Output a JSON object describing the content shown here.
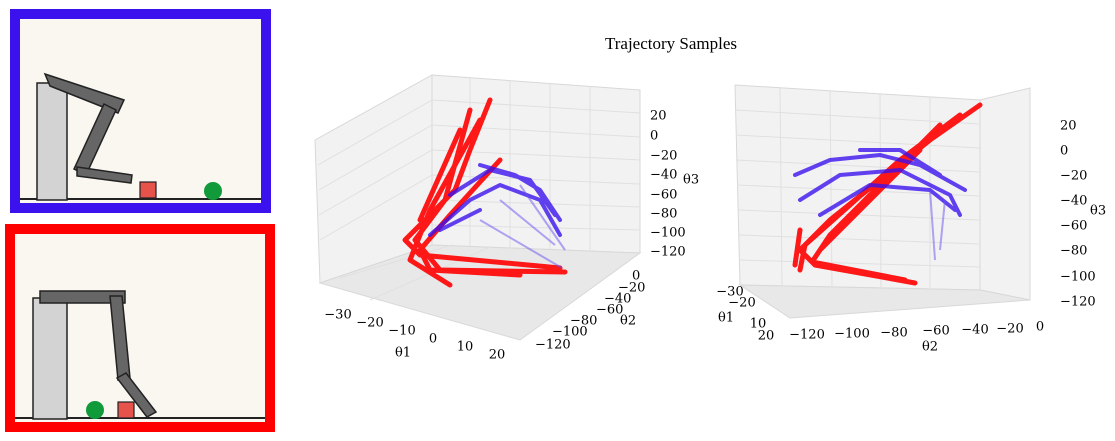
{
  "title": "Trajectory Samples",
  "plots": [
    {
      "xlabel": "θ1",
      "ylabel": "θ2",
      "zlabel": "θ3",
      "xticks": [
        "−30",
        "−20",
        "−10",
        "0",
        "10",
        "20"
      ],
      "yticks": [
        "0",
        "−20",
        "−40",
        "−60",
        "−80",
        "−100",
        "−120"
      ],
      "zticks": [
        "20",
        "0",
        "−20",
        "−40",
        "−60",
        "−80",
        "−100",
        "−120"
      ]
    },
    {
      "xlabel": "θ1",
      "ylabel": "θ2",
      "zlabel": "θ3",
      "xticks": [
        "−30",
        "−20",
        "10",
        "20"
      ],
      "yticks": [
        "−120",
        "−100",
        "−80",
        "−60",
        "−40",
        "−20",
        "0"
      ],
      "zticks": [
        "20",
        "0",
        "−20",
        "−40",
        "−60",
        "−80",
        "−100",
        "−120"
      ]
    }
  ]
}
